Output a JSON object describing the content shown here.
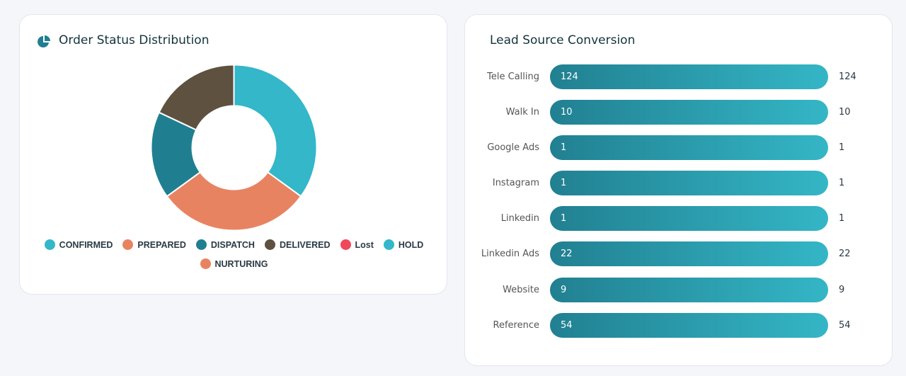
{
  "donut_card": {
    "title": "Order Status Distribution",
    "icon": "pie-chart-icon"
  },
  "bar_card": {
    "title": "Lead Source Conversion"
  },
  "chart_data": [
    {
      "type": "pie",
      "variant": "donut",
      "title": "Order Status Distribution",
      "series": [
        {
          "name": "CONFIRMED",
          "value": 35,
          "color": "#33b7c9"
        },
        {
          "name": "PREPARED",
          "value": 30,
          "color": "#e88362"
        },
        {
          "name": "DISPATCH",
          "value": 17,
          "color": "#1f7f90"
        },
        {
          "name": "DELIVERED",
          "value": 18,
          "color": "#5e5140"
        },
        {
          "name": "Lost",
          "value": 0,
          "color": "#f0485a"
        },
        {
          "name": "HOLD",
          "value": 0,
          "color": "#33b7c9"
        },
        {
          "name": "NURTURING",
          "value": 0,
          "color": "#e88362"
        }
      ],
      "legend_placement": "bottom"
    },
    {
      "type": "bar",
      "orientation": "horizontal",
      "title": "Lead Source Conversion",
      "categories": [
        "Tele Calling",
        "Walk In",
        "Google Ads",
        "Instagram",
        "Linkedin",
        "Linkedin Ads",
        "Website",
        "Reference"
      ],
      "values": [
        124,
        10,
        1,
        1,
        1,
        22,
        9,
        54
      ],
      "color_gradient": [
        "#218091",
        "#34b6c6"
      ]
    }
  ]
}
